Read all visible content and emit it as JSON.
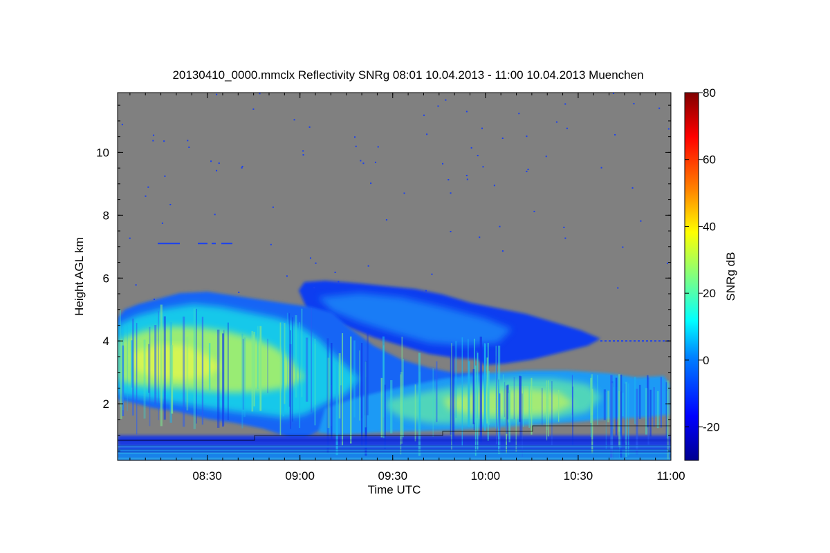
{
  "chart_data": {
    "type": "heatmap",
    "title": "20130410_0000.mmclx Reflectivity SNRg   08:01 10.04.2013 - 11:00 10.04.2013 Muenchen",
    "xlabel": "Time UTC",
    "ylabel": "Height AGL km",
    "colorbar_label": "SNRg dB",
    "x_range": [
      "08:01",
      "11:00"
    ],
    "y_range": [
      0.2,
      11.9
    ],
    "z_range": [
      -30,
      80
    ],
    "x_ticks": [
      "08:30",
      "09:00",
      "09:30",
      "10:00",
      "10:30",
      "11:00"
    ],
    "y_ticks": [
      2,
      4,
      6,
      8,
      10
    ],
    "colorbar_ticks": [
      -20,
      0,
      20,
      40,
      60,
      80
    ],
    "background_color": "#808080",
    "colormap": [
      "#00008f",
      "#0000ff",
      "#0080ff",
      "#00ffff",
      "#80ff80",
      "#ffff00",
      "#ff8000",
      "#ff0000",
      "#800000"
    ],
    "features": [
      {
        "name": "main-cloud",
        "x_start": "08:01",
        "x_end": "10:10",
        "base_km": 2.2,
        "top_km": 5.4,
        "snr_peak_db": 35
      },
      {
        "name": "upper-cloud",
        "x_start": "09:00",
        "x_end": "10:45",
        "base_km": 3.5,
        "top_km": 5.9,
        "snr_peak_db": 10
      },
      {
        "name": "lower-cloud",
        "x_start": "09:30",
        "x_end": "11:00",
        "base_km": 1.4,
        "top_km": 3.2,
        "snr_peak_db": 35
      },
      {
        "name": "boundary-layer-clutter",
        "x_start": "08:01",
        "x_end": "11:00",
        "base_km": 0.2,
        "top_km": 1.0,
        "snr_peak_db": 15
      }
    ]
  }
}
